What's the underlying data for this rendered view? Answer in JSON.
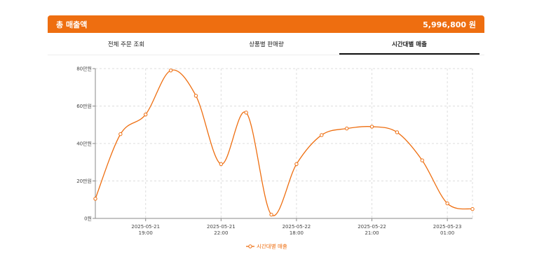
{
  "header": {
    "title": "총 매출액",
    "total": "5,996,800 원",
    "color": "#ee6e10"
  },
  "tabs": [
    {
      "label": "전체 주문 조회",
      "active": false
    },
    {
      "label": "상품별 판매량",
      "active": false
    },
    {
      "label": "시간대별 매출",
      "active": true
    }
  ],
  "chart_data": {
    "type": "line",
    "title": "",
    "xlabel": "",
    "ylabel": "",
    "ylim": [
      0,
      800000
    ],
    "y_ticks": [
      {
        "value": 0,
        "label": "0원"
      },
      {
        "value": 200000,
        "label": "20만원"
      },
      {
        "value": 400000,
        "label": "40만원"
      },
      {
        "value": 600000,
        "label": "60만원"
      },
      {
        "value": 800000,
        "label": "80만원"
      }
    ],
    "x_ticks": [
      {
        "x": 2,
        "date": "2025-05-21",
        "time": "19:00"
      },
      {
        "x": 5,
        "date": "2025-05-21",
        "time": "22:00"
      },
      {
        "x": 8,
        "date": "2025-05-22",
        "time": "18:00"
      },
      {
        "x": 11,
        "date": "2025-05-22",
        "time": "21:00"
      },
      {
        "x": 14,
        "date": "2025-05-23",
        "time": "01:00"
      }
    ],
    "grid": true,
    "legend_position": "bottom",
    "series": [
      {
        "name": "시간대별 매출",
        "color": "#ee6e10",
        "values": [
          105000,
          450000,
          555000,
          790000,
          655000,
          290000,
          565000,
          20000,
          290000,
          445000,
          480000,
          490000,
          460000,
          310000,
          80000,
          50000
        ]
      }
    ]
  }
}
